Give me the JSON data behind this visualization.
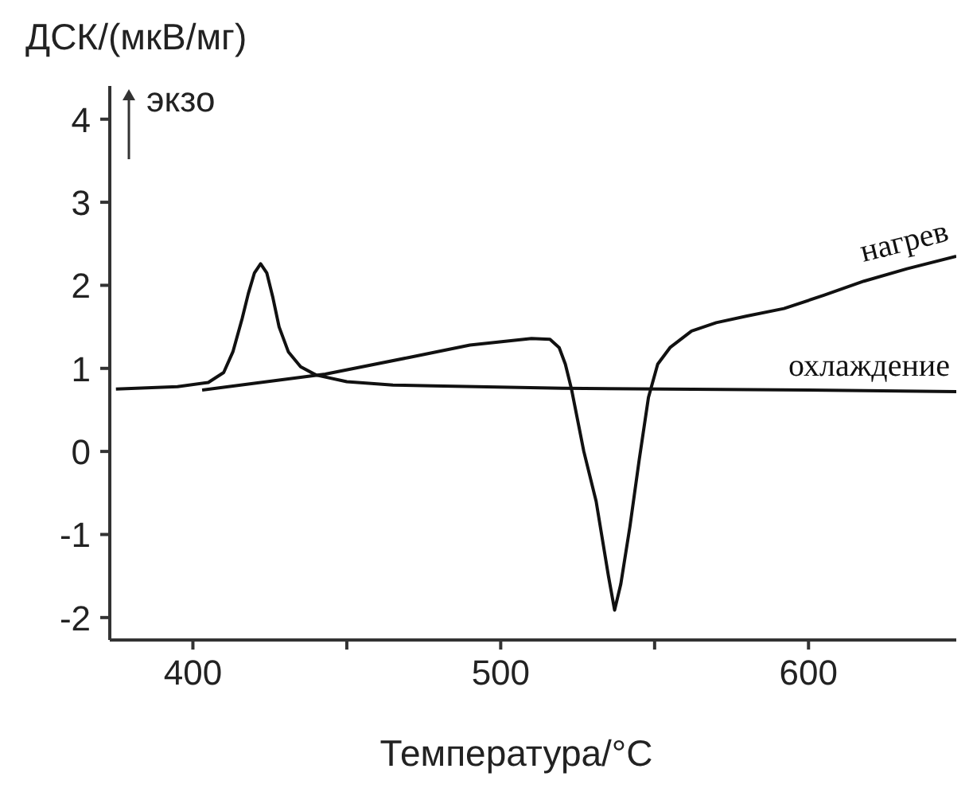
{
  "chart_data": {
    "type": "line",
    "xlabel": "Температура/°C",
    "ylabel": "ДСК/(мкВ/мг)",
    "annotations": [
      "экзо"
    ],
    "xlim": [
      373,
      648
    ],
    "xticks": [
      400,
      {
        "value": 450,
        "label": null
      },
      500,
      {
        "value": 550,
        "label": null
      },
      600
    ],
    "ylim": [
      -2.27,
      4.4
    ],
    "yticks": [
      -2,
      -1,
      0,
      1,
      2,
      3,
      4
    ],
    "marker": "none",
    "line_style": "solid",
    "series": [
      {
        "name": "нагрев",
        "color": "#111111",
        "x": [
          403,
          420,
          443,
          470,
          490,
          510,
          516,
          519,
          521,
          523,
          527,
          531,
          535,
          537,
          539,
          542,
          545,
          548,
          551,
          555,
          562,
          570,
          580,
          592,
          605,
          618,
          632,
          648
        ],
        "values": [
          0.74,
          0.82,
          0.93,
          1.13,
          1.28,
          1.36,
          1.35,
          1.25,
          1.05,
          0.75,
          0.0,
          -0.6,
          -1.5,
          -1.91,
          -1.6,
          -0.9,
          -0.1,
          0.65,
          1.05,
          1.25,
          1.45,
          1.55,
          1.63,
          1.72,
          1.88,
          2.05,
          2.2,
          2.35
        ]
      },
      {
        "name": "охлаждение",
        "color": "#111111",
        "x": [
          375,
          395,
          405,
          410,
          413,
          416,
          418,
          420,
          422,
          424,
          426,
          428,
          431,
          435,
          440,
          450,
          465,
          478,
          520,
          600,
          648
        ],
        "values": [
          0.75,
          0.78,
          0.83,
          0.95,
          1.2,
          1.6,
          1.9,
          2.15,
          2.26,
          2.15,
          1.85,
          1.5,
          1.2,
          1.02,
          0.92,
          0.84,
          0.8,
          0.79,
          0.76,
          0.74,
          0.72
        ]
      }
    ]
  }
}
